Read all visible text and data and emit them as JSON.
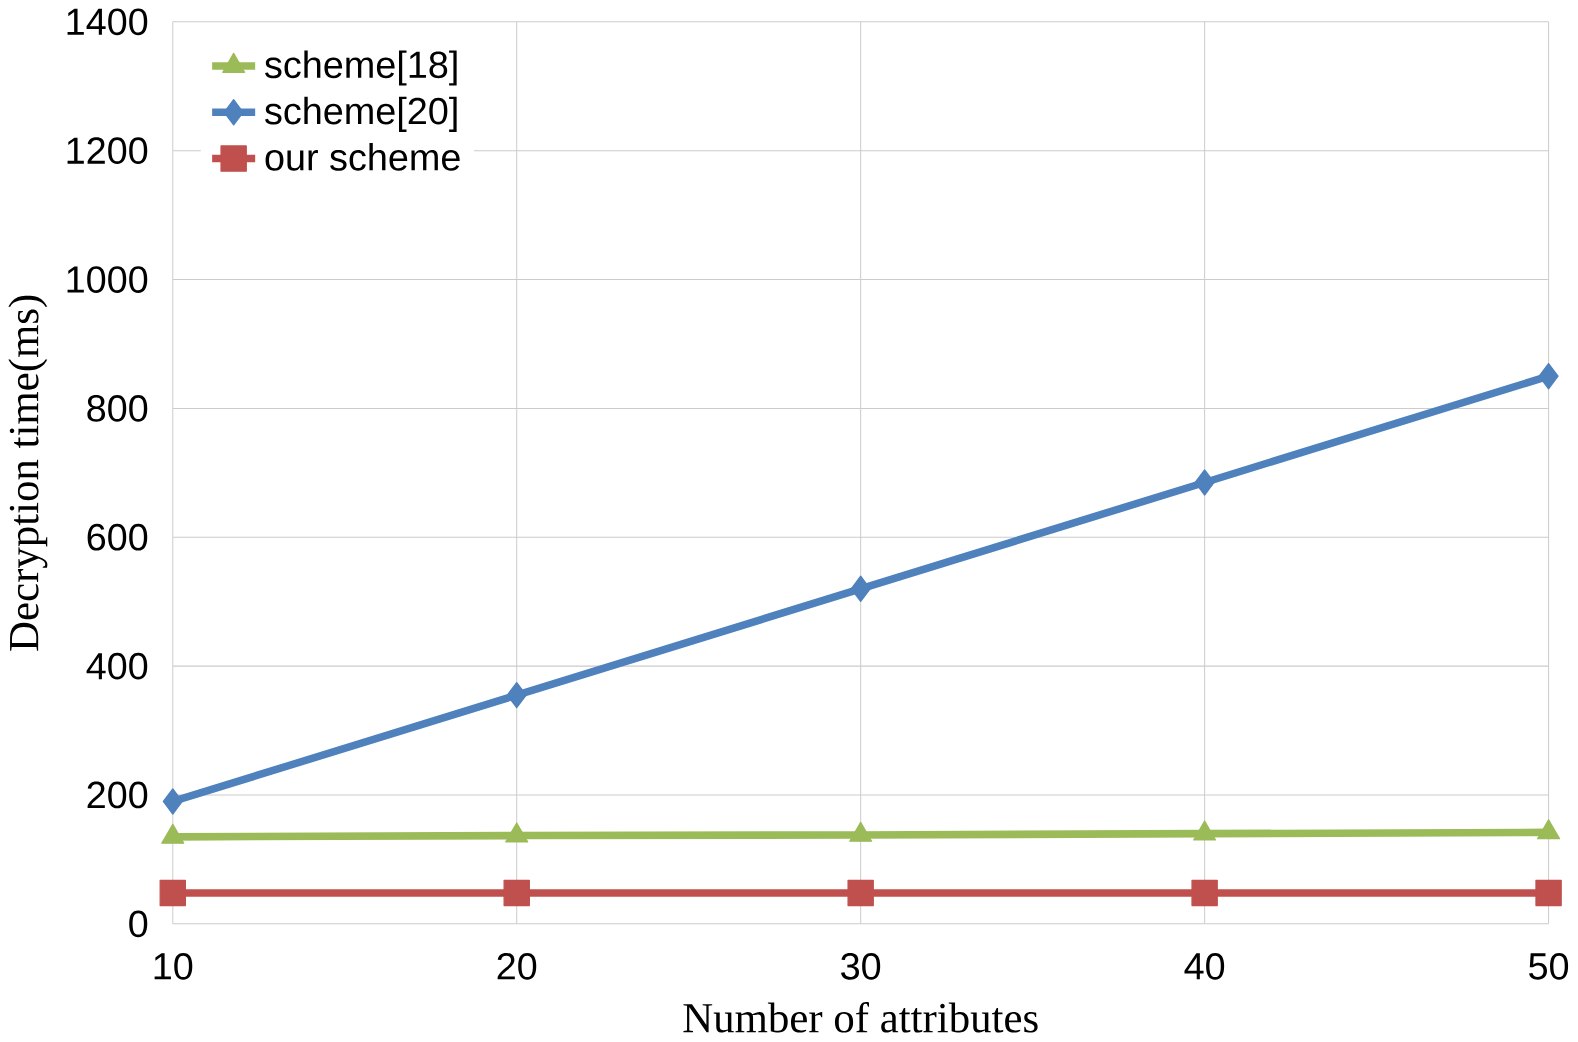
{
  "chart_data": {
    "type": "line",
    "xlabel": "Number of attributes",
    "ylabel": "Decryption time(ms)",
    "x": [
      10,
      20,
      30,
      40,
      50
    ],
    "series": [
      {
        "name": "scheme[18]",
        "color": "#9bbb59",
        "marker": "triangle",
        "values": [
          135,
          137,
          138,
          140,
          142
        ]
      },
      {
        "name": "scheme[20]",
        "color": "#4f81bd",
        "marker": "diamond",
        "values": [
          190,
          355,
          520,
          685,
          850
        ]
      },
      {
        "name": "our scheme",
        "color": "#c0504d",
        "marker": "square",
        "values": [
          48,
          48,
          48,
          48,
          48
        ]
      }
    ],
    "xlim": [
      10,
      50
    ],
    "xticks": [
      10,
      20,
      30,
      40,
      50
    ],
    "ylim": [
      0,
      1400
    ],
    "yticks": [
      0,
      200,
      400,
      600,
      800,
      1000,
      1200,
      1400
    ],
    "grid": true,
    "legend": "top left",
    "line_style": "solid"
  }
}
